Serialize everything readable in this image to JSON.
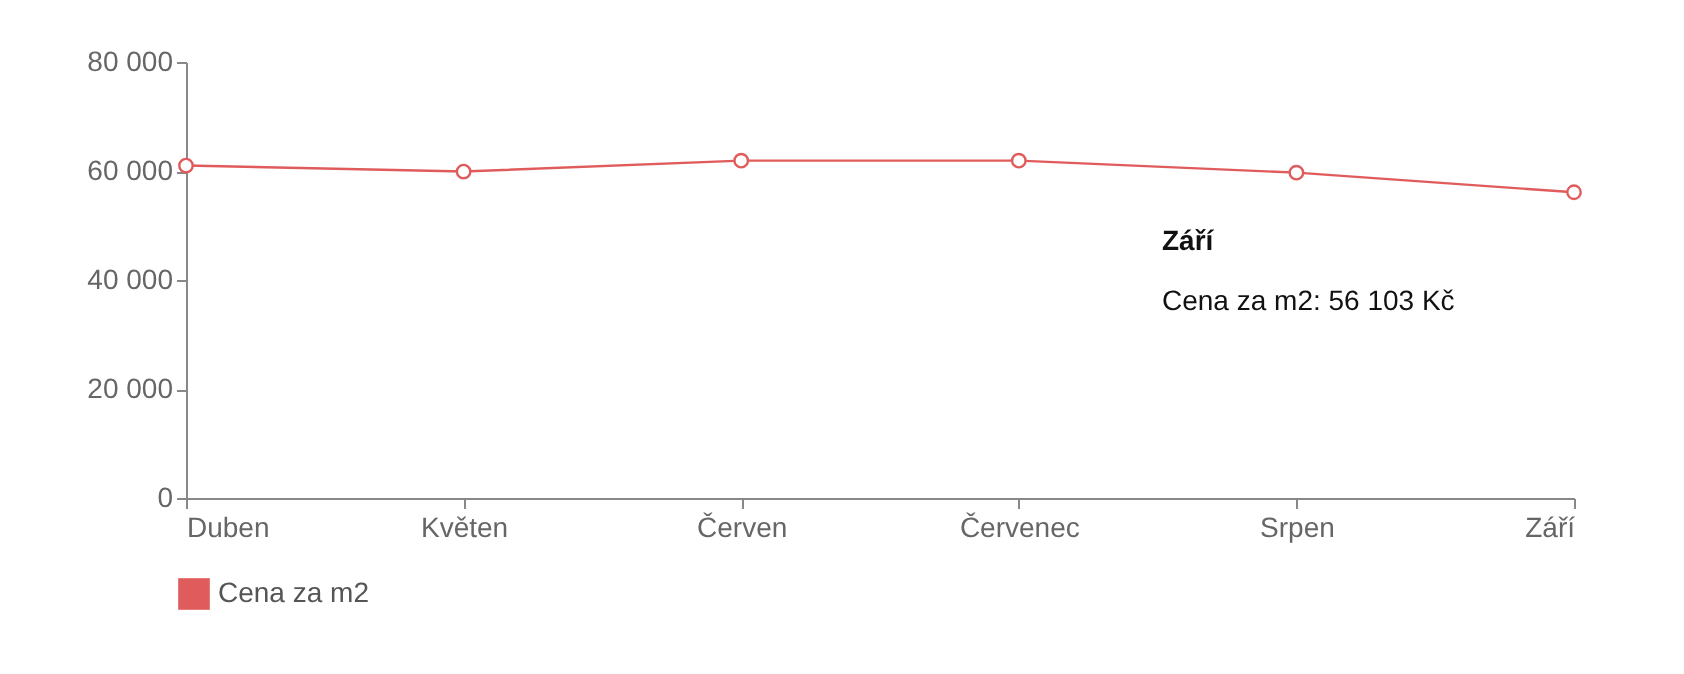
{
  "chart_data": {
    "type": "line",
    "categories": [
      "Duben",
      "Květen",
      "Červen",
      "Červenec",
      "Srpen",
      "Září"
    ],
    "series": [
      {
        "name": "Cena za m2",
        "color": "#e05c5c",
        "values": [
          61000,
          59900,
          61900,
          61900,
          59700,
          56103
        ]
      }
    ],
    "ylim": [
      0,
      80000
    ],
    "yticks": [
      {
        "value": 0,
        "label": "0"
      },
      {
        "value": 20000,
        "label": "20 000"
      },
      {
        "value": 40000,
        "label": "40 000"
      },
      {
        "value": 60000,
        "label": "60 000"
      },
      {
        "value": 80000,
        "label": "80 000"
      }
    ],
    "grid": false,
    "legend": "bottom left",
    "marker": "circle",
    "line_style": "solid",
    "annotations": [
      "Září\nCena za m2: 56 103 Kč"
    ]
  }
}
